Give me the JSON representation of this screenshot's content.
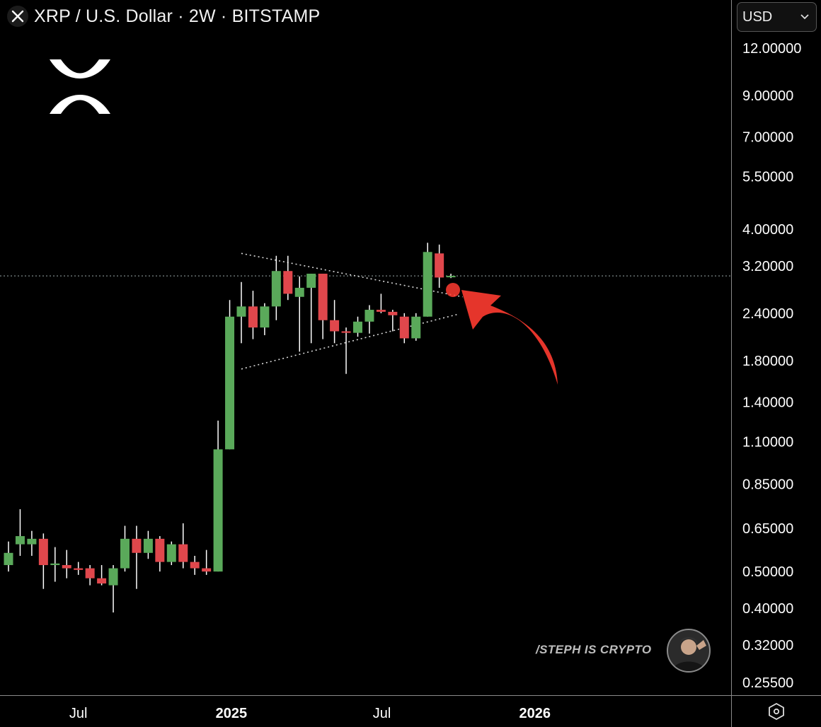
{
  "header": {
    "title": "XRP / U.S. Dollar · 2W · BITSTAMP",
    "symbol_icon": "xrp-x-icon",
    "currency": "USD",
    "currency_icon": "chevron-down-icon"
  },
  "watermark": {
    "text": "/STEPH IS CRYPTO",
    "avatar_icon": "avatar-icon"
  },
  "settings_icon": "settings-hexagon-icon",
  "logo_icon": "xrp-logo-icon",
  "colors": {
    "up": "#5aa95a",
    "down": "#e0474c",
    "wick": "#ffffff",
    "background": "#000000",
    "arrow": "#e5352b",
    "axis_text": "#ffffff"
  },
  "chart_data": {
    "type": "candlestick",
    "title": "XRP / U.S. Dollar · 2W · BITSTAMP",
    "scale": "log",
    "y_ticks": [
      "12.00000",
      "9.00000",
      "7.00000",
      "5.50000",
      "4.00000",
      "3.20000",
      "2.40000",
      "1.80000",
      "1.40000",
      "1.10000",
      "0.85000",
      "0.65000",
      "0.50000",
      "0.40000",
      "0.32000",
      "0.25500"
    ],
    "x_ticks": [
      {
        "label": "Jul",
        "date": "2024-07-01"
      },
      {
        "label": "2025",
        "date": "2025-01-01"
      },
      {
        "label": "Jul",
        "date": "2025-07-01"
      },
      {
        "label": "2026",
        "date": "2026-01-01"
      }
    ],
    "current_price_line": 3.01,
    "candles": [
      {
        "date": "2024-04-08",
        "open": 0.52,
        "high": 0.6,
        "low": 0.5,
        "close": 0.56
      },
      {
        "date": "2024-04-22",
        "open": 0.59,
        "high": 0.73,
        "low": 0.55,
        "close": 0.62
      },
      {
        "date": "2024-05-06",
        "open": 0.59,
        "high": 0.64,
        "low": 0.55,
        "close": 0.61
      },
      {
        "date": "2024-05-20",
        "open": 0.61,
        "high": 0.63,
        "low": 0.45,
        "close": 0.52
      },
      {
        "date": "2024-06-03",
        "open": 0.52,
        "high": 0.58,
        "low": 0.47,
        "close": 0.525
      },
      {
        "date": "2024-06-17",
        "open": 0.52,
        "high": 0.57,
        "low": 0.48,
        "close": 0.51
      },
      {
        "date": "2024-07-01",
        "open": 0.51,
        "high": 0.53,
        "low": 0.49,
        "close": 0.505
      },
      {
        "date": "2024-07-15",
        "open": 0.51,
        "high": 0.52,
        "low": 0.46,
        "close": 0.48
      },
      {
        "date": "2024-07-29",
        "open": 0.48,
        "high": 0.52,
        "low": 0.46,
        "close": 0.465
      },
      {
        "date": "2024-08-12",
        "open": 0.46,
        "high": 0.52,
        "low": 0.39,
        "close": 0.51
      },
      {
        "date": "2024-08-26",
        "open": 0.51,
        "high": 0.66,
        "low": 0.5,
        "close": 0.61
      },
      {
        "date": "2024-09-09",
        "open": 0.61,
        "high": 0.66,
        "low": 0.45,
        "close": 0.56
      },
      {
        "date": "2024-09-23",
        "open": 0.56,
        "high": 0.64,
        "low": 0.54,
        "close": 0.61
      },
      {
        "date": "2024-10-07",
        "open": 0.61,
        "high": 0.62,
        "low": 0.5,
        "close": 0.53
      },
      {
        "date": "2024-10-21",
        "open": 0.53,
        "high": 0.6,
        "low": 0.52,
        "close": 0.59
      },
      {
        "date": "2024-11-04",
        "open": 0.59,
        "high": 0.67,
        "low": 0.51,
        "close": 0.53
      },
      {
        "date": "2024-11-18",
        "open": 0.53,
        "high": 0.55,
        "low": 0.49,
        "close": 0.51
      },
      {
        "date": "2024-12-02",
        "open": 0.51,
        "high": 0.57,
        "low": 0.49,
        "close": 0.5
      },
      {
        "date": "2024-12-16",
        "open": 0.5,
        "high": 1.25,
        "low": 0.5,
        "close": 1.05
      },
      {
        "date": "2024-12-30",
        "open": 1.05,
        "high": 2.6,
        "low": 1.05,
        "close": 2.35
      },
      {
        "date": "2025-01-13",
        "open": 2.35,
        "high": 2.9,
        "low": 2.0,
        "close": 2.5
      },
      {
        "date": "2025-01-27",
        "open": 2.5,
        "high": 2.75,
        "low": 2.05,
        "close": 2.2
      },
      {
        "date": "2025-02-10",
        "open": 2.2,
        "high": 2.55,
        "low": 2.1,
        "close": 2.5
      },
      {
        "date": "2025-02-24",
        "open": 2.5,
        "high": 3.4,
        "low": 2.3,
        "close": 3.1
      },
      {
        "date": "2025-03-10",
        "open": 3.1,
        "high": 3.4,
        "low": 2.6,
        "close": 2.7
      },
      {
        "date": "2025-03-24",
        "open": 2.65,
        "high": 3.0,
        "low": 1.9,
        "close": 2.8
      },
      {
        "date": "2025-04-07",
        "open": 2.8,
        "high": 3.05,
        "low": 2.0,
        "close": 3.05
      },
      {
        "date": "2025-04-21",
        "open": 3.05,
        "high": 3.05,
        "low": 2.05,
        "close": 2.3
      },
      {
        "date": "2025-05-05",
        "open": 2.3,
        "high": 2.6,
        "low": 2.0,
        "close": 2.15
      },
      {
        "date": "2025-05-19",
        "open": 2.15,
        "high": 2.2,
        "low": 1.66,
        "close": 2.13
      },
      {
        "date": "2025-06-02",
        "open": 2.13,
        "high": 2.35,
        "low": 2.08,
        "close": 2.28
      },
      {
        "date": "2025-06-16",
        "open": 2.28,
        "high": 2.52,
        "low": 2.12,
        "close": 2.45
      },
      {
        "date": "2025-06-30",
        "open": 2.45,
        "high": 2.7,
        "low": 2.4,
        "close": 2.42
      },
      {
        "date": "2025-07-14",
        "open": 2.42,
        "high": 2.45,
        "low": 2.15,
        "close": 2.37
      },
      {
        "date": "2025-07-28",
        "open": 2.35,
        "high": 2.4,
        "low": 2.0,
        "close": 2.06
      },
      {
        "date": "2025-08-11",
        "open": 2.06,
        "high": 2.4,
        "low": 2.03,
        "close": 2.35
      },
      {
        "date": "2025-08-25",
        "open": 2.35,
        "high": 3.68,
        "low": 2.35,
        "close": 3.48
      },
      {
        "date": "2025-09-08",
        "open": 3.45,
        "high": 3.64,
        "low": 2.8,
        "close": 2.98
      },
      {
        "date": "2025-09-22",
        "open": 3.0,
        "high": 3.05,
        "low": 2.97,
        "close": 3.01
      }
    ],
    "trendlines": [
      {
        "style": "dotted",
        "from": {
          "date": "2025-01-13",
          "price": 3.45
        },
        "to": {
          "date": "2025-10-06",
          "price": 2.65
        }
      },
      {
        "style": "dotted",
        "from": {
          "date": "2025-01-13",
          "price": 1.71
        },
        "to": {
          "date": "2025-09-29",
          "price": 2.38
        }
      }
    ],
    "annotations": [
      {
        "type": "arrow",
        "color": "#e5352b",
        "points_to": {
          "date": "2025-09-08",
          "price": 2.82
        }
      }
    ]
  }
}
